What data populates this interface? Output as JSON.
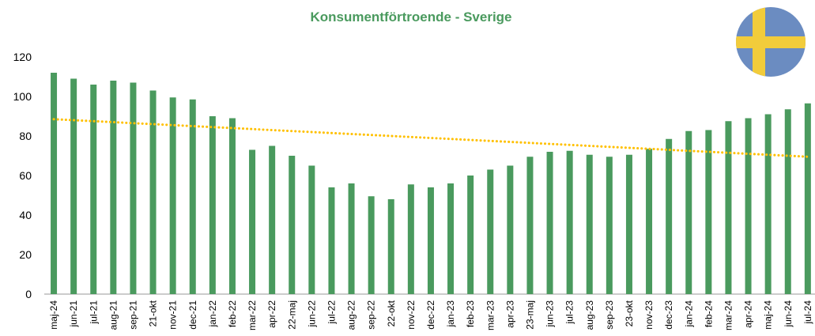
{
  "chart_data": {
    "type": "bar",
    "title": "Konsumentförtroende - Sverige",
    "categories": [
      "maj-24",
      "jun-21",
      "jul-21",
      "aug-21",
      "sep-21",
      "21-okt",
      "nov-21",
      "dec-21",
      "jan-22",
      "feb-22",
      "mar-22",
      "apr-22",
      "22-maj",
      "jun-22",
      "jul-22",
      "aug-22",
      "sep-22",
      "22-okt",
      "nov-22",
      "dec-22",
      "jan-23",
      "feb-23",
      "mar-23",
      "apr-23",
      "23-maj",
      "jun-23",
      "jul-23",
      "aug-23",
      "sep-23",
      "23-okt",
      "nov-23",
      "dec-23",
      "jan-24",
      "feb-24",
      "mar-24",
      "apr-24",
      "maj-24",
      "jun-24",
      "jul-24"
    ],
    "values": [
      112,
      109,
      106,
      108,
      107,
      103,
      99.5,
      98.5,
      90,
      89,
      73,
      75,
      70,
      65,
      54,
      56,
      49.5,
      48,
      55.5,
      54,
      56,
      60,
      63,
      65,
      69.5,
      72,
      72.5,
      70.5,
      69.5,
      70.5,
      73.5,
      78.5,
      82.5,
      83,
      87.5,
      89,
      91,
      93.5,
      96.5
    ],
    "color": "#4a9a5e",
    "trendline": {
      "start": 88.5,
      "end": 69.5,
      "color": "#ffc000"
    },
    "ylim": [
      0,
      120
    ],
    "yticks": [
      0,
      20,
      40,
      60,
      80,
      100,
      120
    ],
    "grid": false
  }
}
